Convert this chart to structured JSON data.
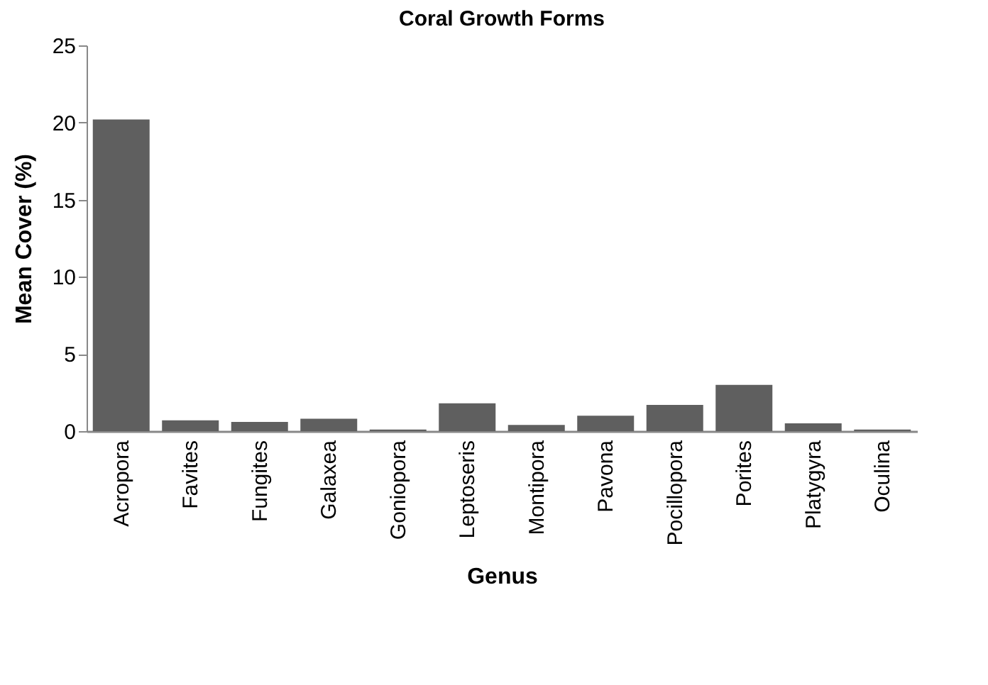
{
  "chart_data": {
    "type": "bar",
    "title": "Coral Growth Forms",
    "xlabel": "Genus",
    "ylabel": "Mean Cover (%)",
    "categories": [
      "Acropora",
      "Favites",
      "Fungites",
      "Galaxea",
      "Goniopora",
      "Leptoseris",
      "Montipora",
      "Pavona",
      "Pocillopora",
      "Porites",
      "Platygyra",
      "Oculina"
    ],
    "values": [
      20.2,
      0.7,
      0.6,
      0.8,
      0.1,
      1.8,
      0.4,
      1.0,
      1.7,
      3.0,
      0.5,
      0.1
    ],
    "color": "#5f5f5f",
    "ylim": [
      0,
      25
    ],
    "yticks": [
      0,
      5,
      10,
      15,
      20,
      25
    ],
    "grid": false
  }
}
